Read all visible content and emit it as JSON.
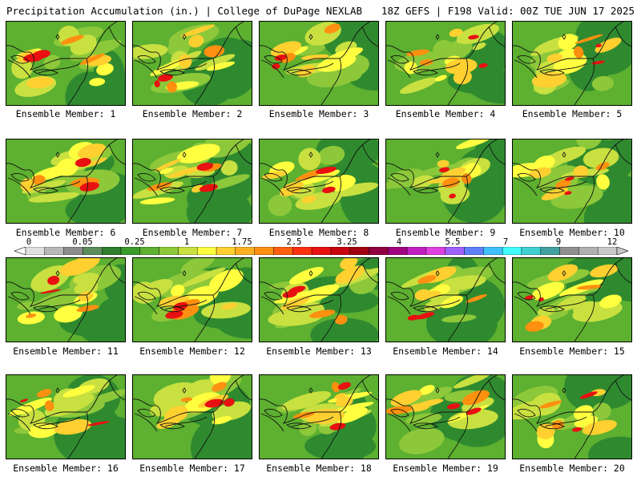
{
  "header": {
    "title": "Precipitation Accumulation (in.) | College of DuPage NEXLAB",
    "run_info": "18Z GEFS | F198 Valid: 00Z TUE JUN 17 2025"
  },
  "members": [
    {
      "label": "Ensemble Member: 1"
    },
    {
      "label": "Ensemble Member: 2"
    },
    {
      "label": "Ensemble Member: 3"
    },
    {
      "label": "Ensemble Member: 4"
    },
    {
      "label": "Ensemble Member: 5"
    },
    {
      "label": "Ensemble Member: 6"
    },
    {
      "label": "Ensemble Member: 7"
    },
    {
      "label": "Ensemble Member: 8"
    },
    {
      "label": "Ensemble Member: 9"
    },
    {
      "label": "Ensemble Member: 10"
    },
    {
      "label": "Ensemble Member: 11"
    },
    {
      "label": "Ensemble Member: 12"
    },
    {
      "label": "Ensemble Member: 13"
    },
    {
      "label": "Ensemble Member: 14"
    },
    {
      "label": "Ensemble Member: 15"
    },
    {
      "label": "Ensemble Member: 16"
    },
    {
      "label": "Ensemble Member: 17"
    },
    {
      "label": "Ensemble Member: 18"
    },
    {
      "label": "Ensemble Member: 19"
    },
    {
      "label": "Ensemble Member: 20"
    }
  ],
  "colorbar": {
    "labels": [
      "0",
      "0.05",
      "0.25",
      "1",
      "1.75",
      "2.5",
      "3.25",
      "4",
      "5.5",
      "7",
      "9",
      "12"
    ],
    "colors": [
      "#e0e0e0",
      "#b8b8b8",
      "#8c8c8c",
      "#5c8c5c",
      "#2f7d2f",
      "#3a9a2a",
      "#5db030",
      "#8cc83a",
      "#c8e040",
      "#ffff40",
      "#ffd030",
      "#ffb020",
      "#ff9010",
      "#ff6010",
      "#ff3010",
      "#e81010",
      "#c80010",
      "#a00010",
      "#900040",
      "#a00080",
      "#c020c0",
      "#e040e0",
      "#a060ff",
      "#6080ff",
      "#40c0ff",
      "#40ffff",
      "#40d0d0",
      "#40a0a0",
      "#909090",
      "#b0b0b0",
      "#c8c8c8"
    ]
  }
}
